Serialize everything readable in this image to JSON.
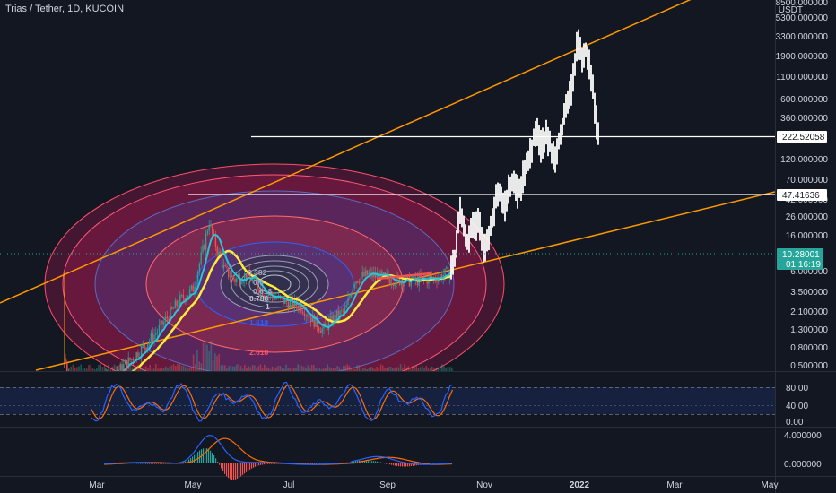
{
  "header": {
    "title": "Trias / Tether, 1D, KUCOIN"
  },
  "price_axis": {
    "currency": "USDT",
    "top_label": "8500.000000",
    "ticks": [
      "5300.000000",
      "3300.000000",
      "1900.000000",
      "1100.000000",
      "600.000000",
      "360.000000",
      "120.000000",
      "70.000000",
      "42.000000",
      "26.000000",
      "16.000000",
      "6.000000",
      "3.500000",
      "2.100000",
      "1.300000",
      "0.800000",
      "0.500000"
    ],
    "scale": "log"
  },
  "time_axis": {
    "ticks": [
      "Mar",
      "May",
      "Jul",
      "Sep",
      "Nov",
      "2022",
      "Mar",
      "May"
    ]
  },
  "level_lines": [
    {
      "label": "222.52058"
    },
    {
      "label": "47.41636"
    }
  ],
  "current_price": {
    "price": "10.28001",
    "countdown": "01:16:19"
  },
  "fib_circle_levels": [
    "0.382",
    "0.5",
    "0.618",
    "0.786",
    "1",
    "1.618",
    "2.618"
  ],
  "stoch_pane": {
    "ticks": [
      "80.00",
      "40.00",
      "0.00"
    ]
  },
  "macd_pane": {
    "ticks": [
      "4.000000",
      "0.000000"
    ]
  },
  "colors": {
    "background": "#131722",
    "candle_up": "#26a69a",
    "candle_down": "#ef5350",
    "trendline": "#ff9800",
    "ma_fast": "#26c6da",
    "ma_slow": "#ffeb3b",
    "projection": "#ffffff",
    "stoch_k": "#2962ff",
    "stoch_d": "#ff6d00"
  },
  "chart_data": {
    "type": "candlestick",
    "symbol": "Trias / Tether",
    "interval": "1D",
    "exchange": "KUCOIN",
    "y_scale": "log",
    "ylim": [
      0.4,
      8500
    ],
    "last_price": 10.28001,
    "horizontal_levels": [
      222.52058,
      47.41636
    ],
    "close_path": [
      {
        "t": "Feb",
        "v": 1.4
      },
      {
        "t": "Mar",
        "v": 0.7
      },
      {
        "t": "Mar",
        "v": 0.8
      },
      {
        "t": "Apr",
        "v": 1.1
      },
      {
        "t": "Apr",
        "v": 2.5
      },
      {
        "t": "Apr",
        "v": 6.5
      },
      {
        "t": "May",
        "v": 30
      },
      {
        "t": "May",
        "v": 20
      },
      {
        "t": "Jun",
        "v": 9
      },
      {
        "t": "Jun",
        "v": 6
      },
      {
        "t": "Jul",
        "v": 4
      },
      {
        "t": "Jul",
        "v": 2.6
      },
      {
        "t": "Aug",
        "v": 5
      },
      {
        "t": "Aug",
        "v": 9
      },
      {
        "t": "Sep",
        "v": 8
      },
      {
        "t": "Sep",
        "v": 8.5
      },
      {
        "t": "Oct",
        "v": 10.28
      }
    ],
    "projection_path": [
      {
        "t": "Oct",
        "v": 12
      },
      {
        "t": "Oct",
        "v": 40
      },
      {
        "t": "Oct",
        "v": 20
      },
      {
        "t": "Nov",
        "v": 45
      },
      {
        "t": "Nov",
        "v": 60
      },
      {
        "t": "Nov",
        "v": 45
      },
      {
        "t": "Dec",
        "v": 200
      },
      {
        "t": "Dec",
        "v": 130
      },
      {
        "t": "Dec",
        "v": 300
      },
      {
        "t": "Jan",
        "v": 1500
      },
      {
        "t": "Jan",
        "v": 1000
      },
      {
        "t": "Jan",
        "v": 240
      }
    ]
  }
}
